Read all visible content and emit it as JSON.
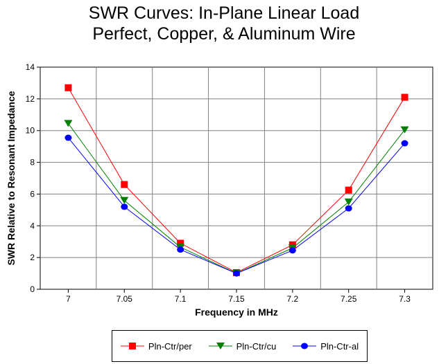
{
  "chart_data": {
    "type": "line",
    "title": [
      "SWR Curves:  In-Plane Linear Load",
      "Perfect, Copper, & Aluminum Wire"
    ],
    "xlabel": "Frequency in MHz",
    "ylabel": "SWR Relative to Resonant Impedance",
    "categories": [
      "7",
      "7.05",
      "7.1",
      "7.15",
      "7.2",
      "7.25",
      "7.3"
    ],
    "yticks": [
      "0",
      "2",
      "4",
      "6",
      "8",
      "10",
      "12",
      "14"
    ],
    "ylim": [
      0,
      14
    ],
    "grid": true,
    "legend": "bottom",
    "series": [
      {
        "name": "Pln-Ctr/per",
        "color": "#ff0000",
        "marker": "square",
        "values": [
          12.7,
          6.6,
          2.9,
          1.05,
          2.8,
          6.25,
          12.1
        ]
      },
      {
        "name": "Pln-Ctr/cu",
        "color": "#008000",
        "marker": "triangle-down",
        "values": [
          10.45,
          5.6,
          2.65,
          1.0,
          2.6,
          5.5,
          10.05
        ]
      },
      {
        "name": "Pln-Ctr-al",
        "color": "#0000ff",
        "marker": "circle",
        "values": [
          9.55,
          5.2,
          2.5,
          1.0,
          2.45,
          5.1,
          9.2
        ]
      }
    ]
  }
}
